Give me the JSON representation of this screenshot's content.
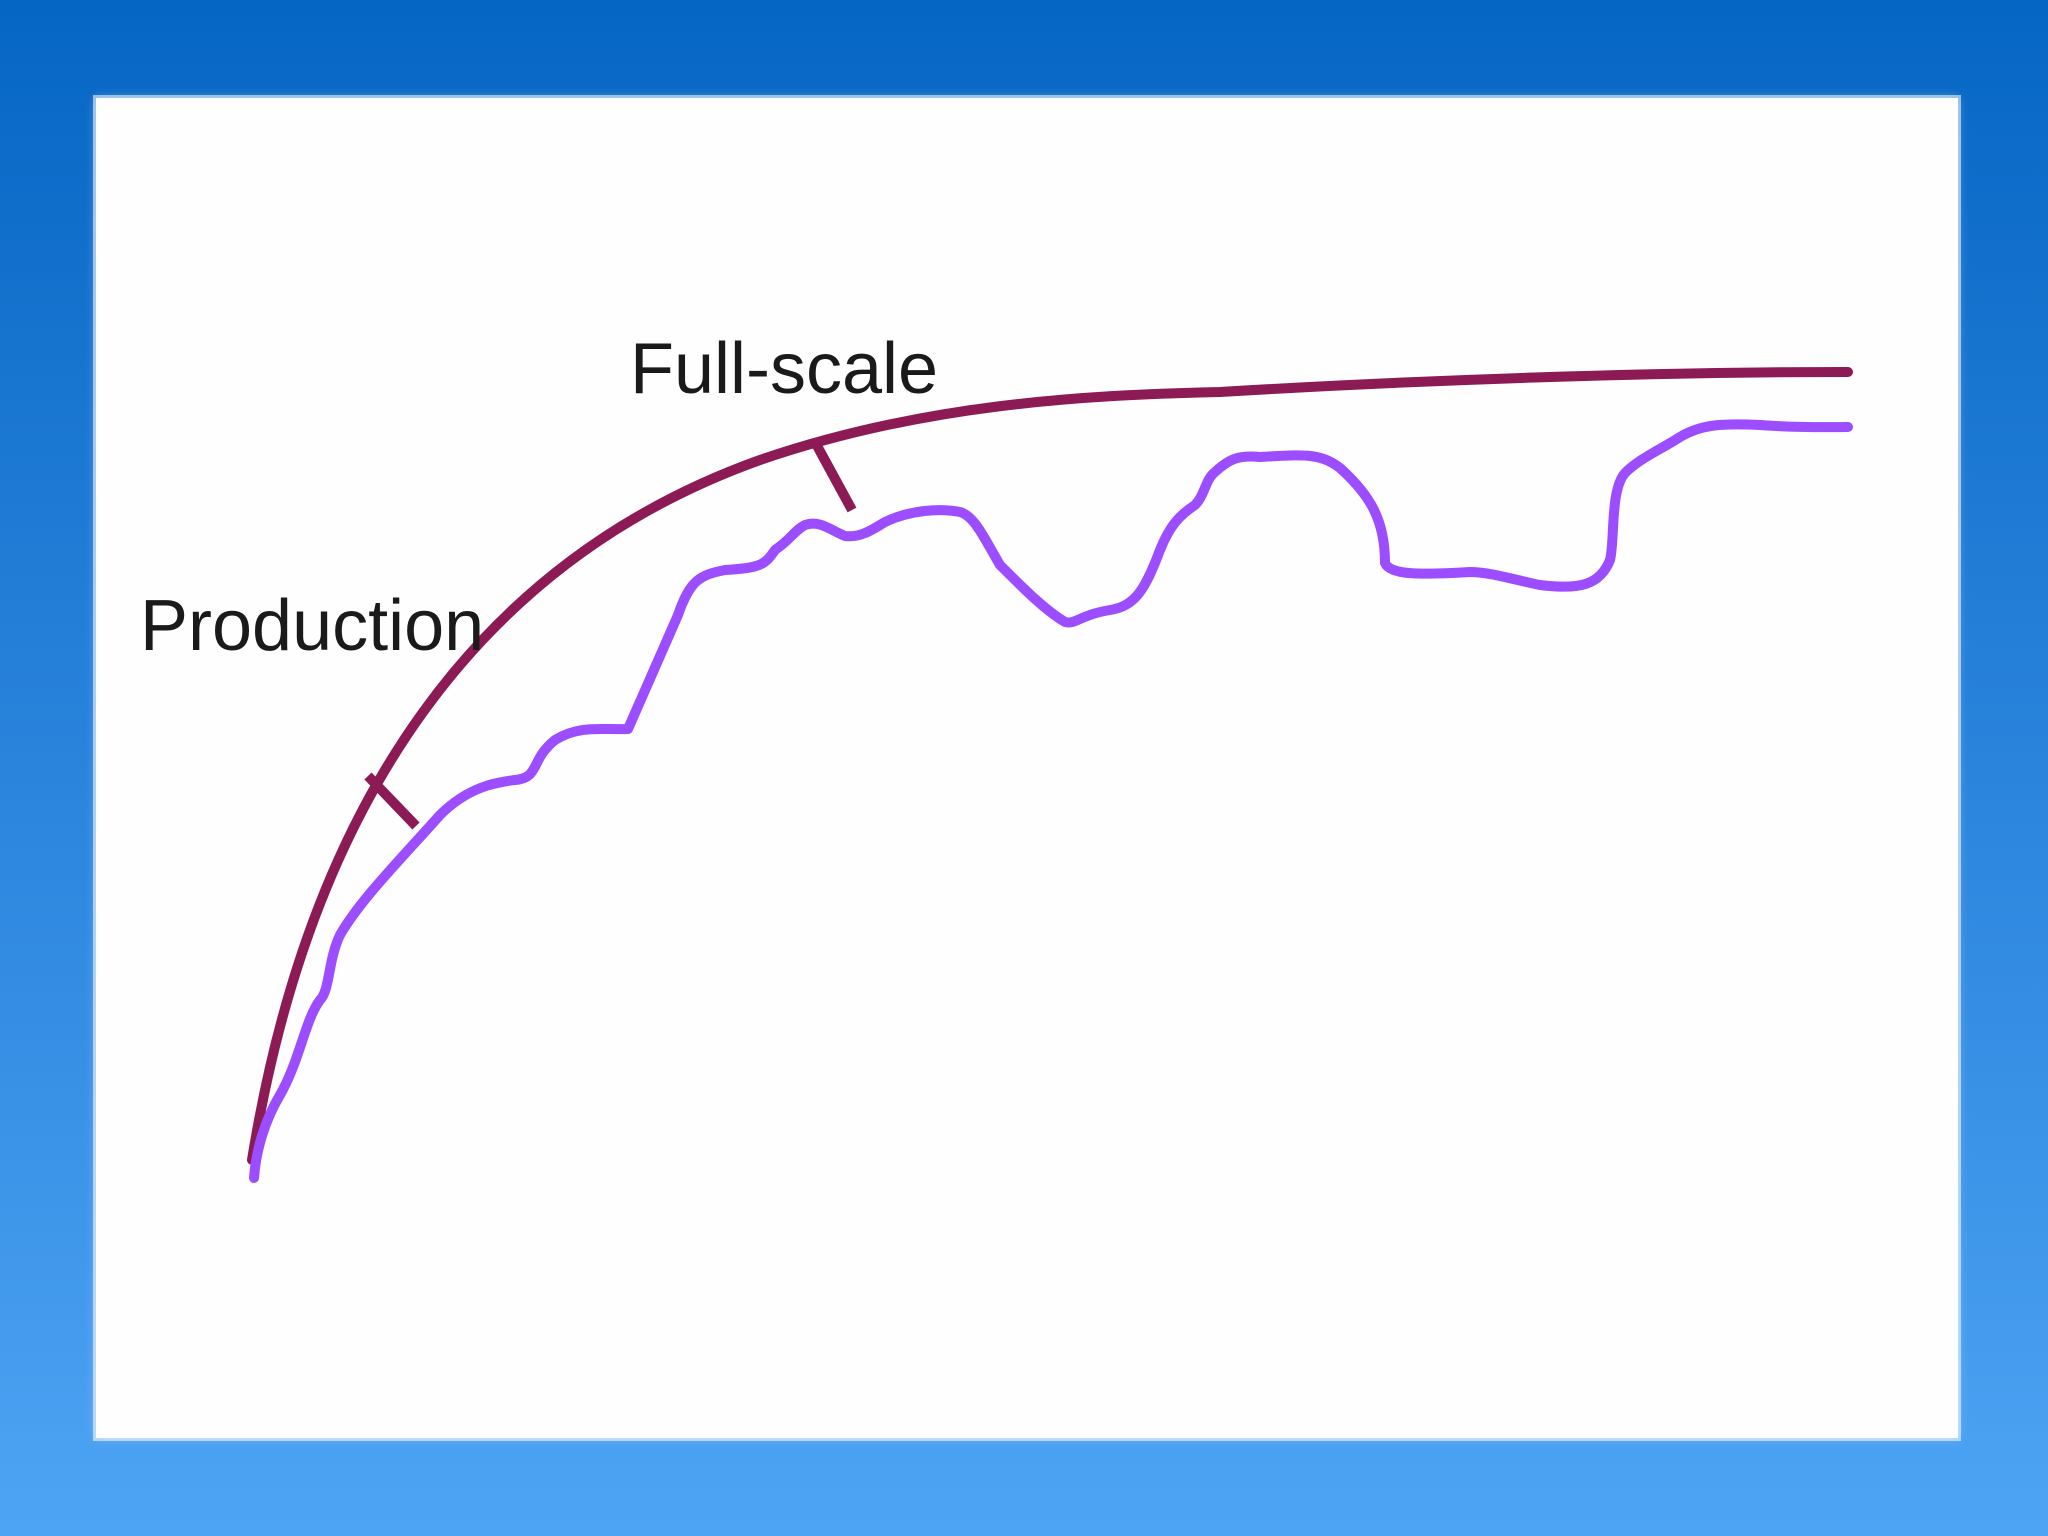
{
  "slide": {
    "background_top": "#0666c4",
    "background_bottom": "#4ea4f4",
    "board_color": "#fefefe"
  },
  "labels": {
    "production": "Production",
    "full_scale": "Full-scale"
  },
  "colors": {
    "ideal_curve": "#8b1a55",
    "actual_curve": "#9b4dff",
    "tick_marks": "#8b1a55",
    "label_text": "#1a1a1a"
  }
}
